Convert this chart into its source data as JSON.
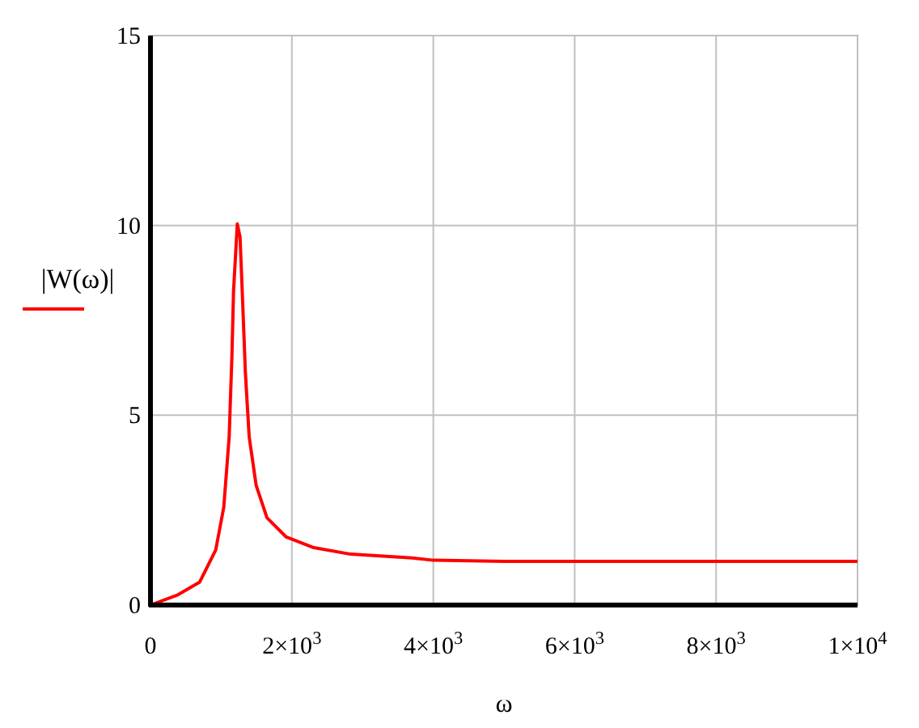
{
  "chart_data": {
    "type": "line",
    "xlabel": "ω",
    "x": [
      0,
      389,
      694,
      923,
      1037,
      1113,
      1152,
      1175,
      1228,
      1267,
      1304,
      1342,
      1396,
      1495,
      1648,
      1915,
      2296,
      2830,
      3700,
      4000,
      5000,
      7000,
      10000
    ],
    "series": [
      {
        "name": "|W(ω)|",
        "color": "#ff0000",
        "values": [
          0,
          0.27,
          0.6,
          1.45,
          2.58,
          4.43,
          6.56,
          8.27,
          10.04,
          9.69,
          7.98,
          6.14,
          4.43,
          3.15,
          2.3,
          1.8,
          1.52,
          1.34,
          1.24,
          1.18,
          1.15,
          1.15,
          1.15
        ]
      }
    ],
    "xlim": [
      0,
      10000
    ],
    "xticks": [
      0,
      {
        "value": 2000,
        "label": "2×10$^{3}$"
      },
      {
        "value": 4000,
        "label": "4×10$^{3}$"
      },
      {
        "value": 6000,
        "label": "6×10$^{3}$"
      },
      {
        "value": 8000,
        "label": "8×10$^{3}$"
      },
      {
        "value": 10000,
        "label": "1×10$^{4}$"
      }
    ],
    "ylim": [
      0,
      15
    ],
    "yticks": [
      0,
      5,
      10,
      15
    ],
    "grid": true,
    "legend": "left",
    "marker": "none",
    "line_style": "solid"
  }
}
